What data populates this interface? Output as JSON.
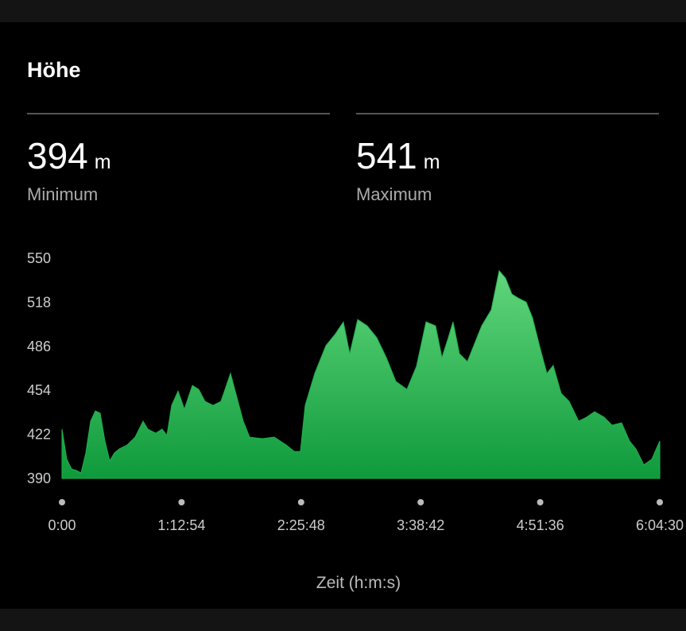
{
  "header": {
    "title": "Höhe"
  },
  "stats": [
    {
      "value": 394,
      "unit": "m",
      "label": "Minimum"
    },
    {
      "value": 541,
      "unit": "m",
      "label": "Maximum"
    }
  ],
  "chart_data": {
    "type": "area",
    "xlabel": "Zeit (h:m:s)",
    "color": "#1fb04a",
    "x": [
      0,
      174,
      349,
      523,
      698,
      872,
      1047,
      1221,
      1396,
      1570,
      1745,
      1919,
      2094,
      2385,
      2675,
      2966,
      3141,
      3431,
      3664,
      3839,
      4013,
      4246,
      4478,
      4769,
      5002,
      5234,
      5525,
      5816,
      6165,
      6398,
      6630,
      6863,
      7328,
      7764,
      8201,
      8491,
      8724,
      8898,
      9247,
      9655,
      10004,
      10294,
      10527,
      10818,
      11167,
      11516,
      11865,
      12214,
      12621,
      12970,
      13319,
      13668,
      13900,
      14133,
      14307,
      14540,
      14831,
      15122,
      15354,
      15703,
      15994,
      16227,
      16460,
      16692,
      16983,
      17215,
      17506,
      17739,
      17971,
      18262,
      18553,
      18902,
      19193,
      19483,
      19832,
      20123,
      20472,
      20763,
      20996,
      21287,
      21578,
      21870
    ],
    "values": [
      425.8,
      403.9,
      396.9,
      395.8,
      394,
      408.5,
      431.6,
      439.1,
      437.4,
      417.2,
      402.7,
      408.5,
      411.4,
      414.3,
      420,
      431.6,
      425.8,
      422.9,
      425.8,
      421.2,
      443.1,
      453.5,
      440.3,
      457.6,
      454.7,
      446,
      443.1,
      446,
      466.3,
      448.9,
      431.6,
      420,
      418.9,
      420,
      414.3,
      409.6,
      409.6,
      443.1,
      466.3,
      486.5,
      495.1,
      503.7,
      480.6,
      505.5,
      500.9,
      492.3,
      477.8,
      460.5,
      454.7,
      471.5,
      503.8,
      500.9,
      477.8,
      492.3,
      503.8,
      480.6,
      474.9,
      489.4,
      500.9,
      512.5,
      541,
      535.6,
      524,
      521.1,
      518.2,
      506.7,
      483.6,
      466.3,
      472.1,
      451.8,
      446,
      431.6,
      434.5,
      438.5,
      434.5,
      428.7,
      430.4,
      417.2,
      411.4,
      399.8,
      403.9,
      417.2
    ],
    "xlim": [
      0,
      21870
    ],
    "xticks": [
      {
        "value": 0,
        "label": "0:00"
      },
      {
        "value": 4374,
        "label": "1:12:54"
      },
      {
        "value": 8748,
        "label": "2:25:48"
      },
      {
        "value": 13122,
        "label": "3:38:42"
      },
      {
        "value": 17496,
        "label": "4:51:36"
      },
      {
        "value": 21870,
        "label": "6:04:30"
      }
    ],
    "ylim": [
      390,
      550
    ],
    "yticks": [
      390,
      422,
      454,
      486,
      518,
      550
    ]
  }
}
